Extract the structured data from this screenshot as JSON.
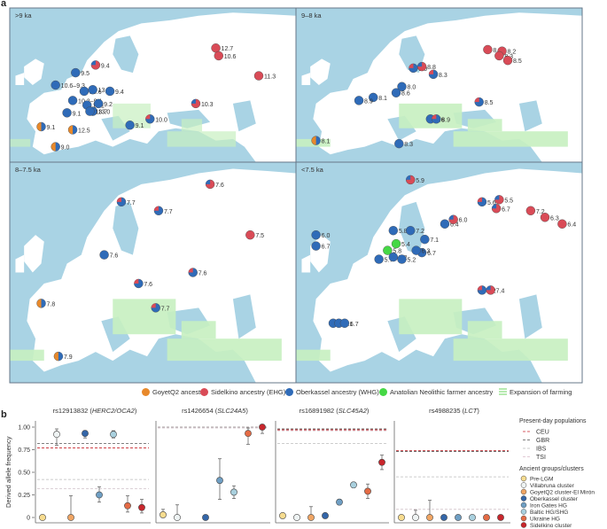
{
  "panel_a": {
    "letter": "a",
    "maps": [
      {
        "label": ">9 ka",
        "points": [
          {
            "t": "9.4",
            "c": "mix_r"
          },
          {
            "t": "12.7",
            "c": "red"
          },
          {
            "t": "10.6",
            "c": "red"
          },
          {
            "t": "11.3",
            "c": "red"
          },
          {
            "t": "9.5",
            "c": "blue"
          },
          {
            "t": "10.6–9.3",
            "c": "blue"
          },
          {
            "t": "10.6",
            "c": "blue"
          },
          {
            "t": "13.7",
            "c": "blue"
          },
          {
            "t": "9.4",
            "c": "blue"
          },
          {
            "t": "10.2–9.1",
            "c": "blue"
          },
          {
            "t": "10.1",
            "c": "blue"
          },
          {
            "t": "9.2",
            "c": "blue"
          },
          {
            "t": "13.0",
            "c": "blue"
          },
          {
            "t": "9.1",
            "c": "blue"
          },
          {
            "t": "13.7",
            "c": "blue"
          },
          {
            "t": "10.3",
            "c": "mix_r"
          },
          {
            "t": "10.0",
            "c": "mix_b"
          },
          {
            "t": "9.1",
            "c": "blue"
          },
          {
            "t": "9.1",
            "c": "orange"
          },
          {
            "t": "12.5",
            "c": "orange"
          },
          {
            "t": "9.0",
            "c": "orange"
          }
        ]
      },
      {
        "label": "9–8 ka",
        "points": [
          {
            "t": "8.1",
            "c": "red"
          },
          {
            "t": "8.2",
            "c": "red"
          },
          {
            "t": "8.3",
            "c": "red"
          },
          {
            "t": "8.5",
            "c": "red"
          },
          {
            "t": "9.0",
            "c": "mix_b"
          },
          {
            "t": "8.8",
            "c": "mix_r"
          },
          {
            "t": "8.3",
            "c": "mix_b"
          },
          {
            "t": "8.0",
            "c": "blue"
          },
          {
            "t": "8.6",
            "c": "blue"
          },
          {
            "t": "8.1",
            "c": "blue"
          },
          {
            "t": "8.9",
            "c": "blue"
          },
          {
            "t": "8.5",
            "c": "mix_b"
          },
          {
            "t": "8.6",
            "c": "blue"
          },
          {
            "t": "8.9",
            "c": "mix_b"
          },
          {
            "t": "8.3",
            "c": "blue"
          },
          {
            "t": "8.1",
            "c": "orange"
          }
        ]
      },
      {
        "label": "8–7.5 ka",
        "points": [
          {
            "t": "7.7",
            "c": "mix_b"
          },
          {
            "t": "7.7",
            "c": "mix_b"
          },
          {
            "t": "7.6",
            "c": "mix_r"
          },
          {
            "t": "7.5",
            "c": "red"
          },
          {
            "t": "7.6",
            "c": "blue"
          },
          {
            "t": "7.6",
            "c": "mix_b"
          },
          {
            "t": "7.6",
            "c": "mix_b"
          },
          {
            "t": "7.7",
            "c": "mix_b"
          },
          {
            "t": "7.8",
            "c": "orange"
          },
          {
            "t": "7.9",
            "c": "orange"
          }
        ]
      },
      {
        "label": "<7.5 ka",
        "points": [
          {
            "t": "5.9",
            "c": "mix_r"
          },
          {
            "t": "5.6",
            "c": "mix_b"
          },
          {
            "t": "5.5",
            "c": "mix_r"
          },
          {
            "t": "6.7",
            "c": "mix_r"
          },
          {
            "t": "7.2",
            "c": "red"
          },
          {
            "t": "6.3",
            "c": "red"
          },
          {
            "t": "6.4",
            "c": "red"
          },
          {
            "t": "6.0",
            "c": "blue"
          },
          {
            "t": "6.7",
            "c": "blue"
          },
          {
            "t": "5.8",
            "c": "blue"
          },
          {
            "t": "7.2",
            "c": "blue"
          },
          {
            "t": "7.1",
            "c": "blue"
          },
          {
            "t": "5.8",
            "c": "green"
          },
          {
            "t": "5.4",
            "c": "green"
          },
          {
            "t": "5.7",
            "c": "blue"
          },
          {
            "t": "5.2",
            "c": "blue"
          },
          {
            "t": "5.2",
            "c": "blue"
          },
          {
            "t": "6.7",
            "c": "blue"
          },
          {
            "t": "6.4",
            "c": "blue"
          },
          {
            "t": "6.0",
            "c": "mix_r"
          },
          {
            "t": "6.3",
            "c": "blue"
          },
          {
            "t": "7.2",
            "c": "mix_b"
          },
          {
            "t": "7.4",
            "c": "mix_r"
          },
          {
            "t": "7.1",
            "c": "blue"
          },
          {
            "t": "7.1",
            "c": "blue"
          },
          {
            "t": "6.7",
            "c": "blue"
          }
        ]
      }
    ],
    "legend": [
      {
        "label": "GoyetQ2 ancestry",
        "color": "#e8892b"
      },
      {
        "label": "Sidelkino ancestry (EHG)",
        "color": "#d94b57"
      },
      {
        "label": "Oberkassel ancestry (WHG)",
        "color": "#2f6bb8"
      },
      {
        "label": "Anatolian Neolithic farmer ancestry",
        "color": "#45d845"
      },
      {
        "label": "Expansion of farming",
        "color": "#b6eab0"
      }
    ],
    "colors": {
      "sea": "#a9d3e4",
      "land": "#ffffff",
      "farming": "#c7f0c0",
      "frame": "#667788"
    }
  },
  "chart_data": {
    "type": "scatter",
    "panel_letter": "b",
    "ylabel": "Derived allele frequency",
    "ylim": [
      0,
      1
    ],
    "yticks": [
      "0",
      "0.25",
      "0.50",
      "0.75",
      "1.00"
    ],
    "groups": [
      {
        "name": "Pre-LGM",
        "color": "#f7dc8f"
      },
      {
        "name": "Villabruna cluster",
        "color": "#eef3f3"
      },
      {
        "name": "GoyetQ2 cluster-El Mirón",
        "color": "#f0a564"
      },
      {
        "name": "Oberkassel cluster",
        "color": "#3466a8"
      },
      {
        "name": "Iron Gates HG",
        "color": "#6f9fc4"
      },
      {
        "name": "Baltic HG/SHG",
        "color": "#a9d0de"
      },
      {
        "name": "Ukraine HG",
        "color": "#e46b45"
      },
      {
        "name": "Sidelkino cluster",
        "color": "#c8262c"
      }
    ],
    "facets": [
      {
        "snp": "rs12913832",
        "gene": "HERC2/OCA2",
        "values": [
          0,
          0.92,
          0,
          0.93,
          0.25,
          0.92,
          0.13,
          0.11
        ],
        "lo": [
          null,
          0.8,
          0,
          0.88,
          0.17,
          0.88,
          0.06,
          0.05
        ],
        "hi": [
          null,
          0.98,
          0.24,
          0.96,
          0.34,
          0.96,
          0.24,
          0.2
        ],
        "ref": {
          "CEU": 0.77,
          "GBR": 0.82,
          "IBS": 0.42,
          "TSI": 0.32
        }
      },
      {
        "snp": "rs1426654",
        "gene": "SLC24A5",
        "values": [
          0.03,
          0,
          null,
          0,
          0.41,
          0.28,
          0.93,
          1.0
        ],
        "lo": [
          0.01,
          0,
          null,
          null,
          0.2,
          0.21,
          0.81,
          0.93
        ],
        "hi": [
          0.09,
          0.14,
          null,
          null,
          0.65,
          0.35,
          0.99,
          1.0
        ],
        "ref": {
          "CEU": 1.0,
          "GBR": 1.0,
          "IBS": 1.0,
          "TSI": 0.99
        }
      },
      {
        "snp": "rs16891982",
        "gene": "SLC45A2",
        "values": [
          0.02,
          0,
          0,
          0.02,
          0.17,
          0.36,
          0.29,
          0.61
        ],
        "lo": [
          null,
          null,
          0,
          null,
          0.14,
          0.33,
          0.21,
          0.53
        ],
        "hi": [
          null,
          null,
          0.12,
          null,
          0.2,
          0.39,
          0.37,
          0.69
        ],
        "ref": {
          "CEU": 0.97,
          "GBR": 0.98,
          "IBS": 0.82,
          "TSI": 0.96
        }
      },
      {
        "snp": "rs4988235",
        "gene": "LCT",
        "values": [
          0,
          0,
          0,
          0,
          0,
          0,
          0,
          0
        ],
        "lo": [
          null,
          0,
          0,
          null,
          null,
          null,
          null,
          null
        ],
        "hi": [
          null,
          0.08,
          0.19,
          null,
          null,
          null,
          null,
          null
        ],
        "ref": {
          "CEU": 0.74,
          "GBR": 0.73,
          "IBS": 0.45,
          "TSI": 0.09
        }
      }
    ],
    "present_day": {
      "title": "Present-day populations",
      "items": [
        {
          "name": "CEU",
          "color": "#c8262c"
        },
        {
          "name": "GBR",
          "color": "#555555"
        },
        {
          "name": "IBS",
          "color": "#bbbbbb"
        },
        {
          "name": "TSI",
          "color": "#d8b8c8"
        }
      ]
    },
    "ancient_title": "Ancient groups/clusters"
  }
}
